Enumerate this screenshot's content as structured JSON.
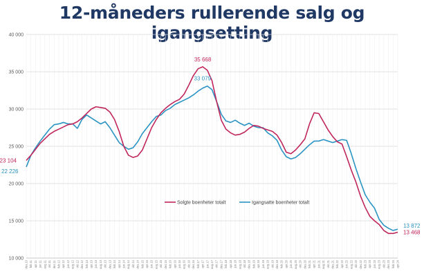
{
  "title": "12-måneders rullerende salg og igangsetting",
  "colors": {
    "sold": "#c0245c",
    "started": "#2a93c3",
    "title": "#1f3864",
    "grid": "#d9d9d9"
  },
  "chart_data": {
    "type": "line",
    "title": "12-måneders rullerende salg og igangsetting",
    "xlabel": "",
    "ylabel": "",
    "ylim": [
      10000,
      40000
    ],
    "yticks": [
      10000,
      15000,
      20000,
      25000,
      30000,
      35000,
      40000
    ],
    "ytick_labels": [
      "10 000",
      "15 000",
      "20 000",
      "25 000",
      "30 000",
      "35 000",
      "40 000"
    ],
    "grid": true,
    "legend_position": "bottom-right",
    "x": [
      "des.10",
      "feb.11",
      "apr.11",
      "jun.11",
      "aug.11",
      "okt.11",
      "des.11",
      "feb.12",
      "apr.12",
      "jun.12",
      "aug.12",
      "okt.12",
      "des.12",
      "feb.13",
      "apr.13",
      "jun.13",
      "aug.13",
      "okt.13",
      "des.13",
      "feb.14",
      "apr.14",
      "jun.14",
      "aug.14",
      "okt.14",
      "des.14",
      "feb.15",
      "apr.15",
      "jun.15",
      "aug.15",
      "okt.15",
      "des.15",
      "feb.16",
      "apr.16",
      "jun.16",
      "aug.16",
      "okt.16",
      "des.16",
      "feb.17",
      "apr.17",
      "jun.17",
      "aug.17",
      "okt.17",
      "des.17",
      "feb.18",
      "apr.18",
      "jun.18",
      "aug.18",
      "okt.18",
      "des.18",
      "feb.19",
      "apr.19",
      "jun.19",
      "aug.19",
      "okt.19",
      "des.19",
      "feb.20",
      "apr.20",
      "jun.20",
      "aug.20",
      "okt.20",
      "des.20",
      "feb.21",
      "apr.21",
      "jun.21",
      "aug.21",
      "okt.21",
      "des.21",
      "feb.22",
      "apr.22",
      "jun.22",
      "aug.22",
      "okt.22",
      "des.22",
      "feb.23",
      "apr.23",
      "jun.23",
      "aug.23",
      "okt.23",
      "des.23",
      "feb.24",
      "apr.24"
    ],
    "series": [
      {
        "name": "Solgte boenheter totalt",
        "color": "#c0245c",
        "values": [
          23104,
          23800,
          24600,
          25400,
          26000,
          26600,
          27000,
          27300,
          27600,
          27900,
          28000,
          28300,
          28800,
          29400,
          30000,
          30300,
          30200,
          30100,
          29600,
          28600,
          27000,
          25000,
          23800,
          23500,
          23700,
          24500,
          26000,
          27500,
          28600,
          29500,
          30100,
          30600,
          31000,
          31300,
          32000,
          33200,
          34500,
          35400,
          35668,
          35200,
          33800,
          31000,
          28500,
          27300,
          26800,
          26500,
          26600,
          26900,
          27400,
          27800,
          27700,
          27400,
          27200,
          27000,
          26500,
          25500,
          24200,
          24000,
          24500,
          25200,
          26000,
          28000,
          29500,
          29400,
          28300,
          27200,
          26300,
          25600,
          25300,
          23600,
          21800,
          20200,
          18300,
          16800,
          15600,
          15000,
          14500,
          13700,
          13300,
          13300,
          13468
        ]
      },
      {
        "name": "Igangsatte boenheter totalt",
        "color": "#2a93c3",
        "values": [
          22226,
          23800,
          24800,
          25700,
          26500,
          27300,
          27900,
          28000,
          28200,
          28000,
          28000,
          27400,
          28600,
          29200,
          28800,
          28400,
          28000,
          28300,
          27500,
          26500,
          25500,
          25000,
          24600,
          24800,
          25600,
          26700,
          27500,
          28300,
          29000,
          29200,
          29800,
          30100,
          30600,
          30900,
          31200,
          31500,
          31900,
          32400,
          32800,
          33079,
          32600,
          31000,
          29300,
          28400,
          28200,
          28500,
          28100,
          27800,
          28100,
          27700,
          27500,
          27500,
          26800,
          26400,
          25800,
          24500,
          23600,
          23300,
          23500,
          24000,
          24600,
          25200,
          25700,
          25700,
          25900,
          25700,
          25500,
          25700,
          25900,
          25800,
          24000,
          22000,
          20200,
          18500,
          17500,
          16700,
          15200,
          14400,
          14000,
          13700,
          13872
        ]
      }
    ],
    "annotations": [
      {
        "text": "35 668",
        "series": 0,
        "index": 38
      },
      {
        "text": "33 079",
        "series": 1,
        "index": 39
      },
      {
        "text": "23 104",
        "series": 0,
        "index": 0
      },
      {
        "text": "22 226",
        "series": 1,
        "index": 0
      },
      {
        "text": "13 872",
        "series": 1,
        "index": 80
      },
      {
        "text": "13 468",
        "series": 0,
        "index": 80
      }
    ]
  }
}
